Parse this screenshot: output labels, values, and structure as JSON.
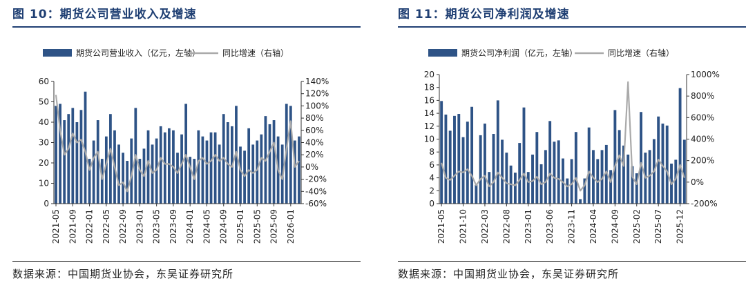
{
  "panels": [
    {
      "title": "图 10：期货公司营业收入及增速",
      "source": "数据来源：中国期货业协会，东吴证券研究所"
    },
    {
      "title": "图 11：期货公司净利润及增速",
      "source": "数据来源：中国期货业协会，东吴证券研究所"
    }
  ],
  "colors": {
    "bar": "#2e5386",
    "line": "#aaaaaa",
    "title": "#1f3f73"
  },
  "chart_data": [
    {
      "type": "bar",
      "title": "",
      "legend": [
        "期货公司营业收入（亿元，左轴）",
        "同比增速（右轴）"
      ],
      "legend_position": "top",
      "grid": false,
      "ylim_left": [
        0,
        60
      ],
      "yticks_left": [
        "0",
        "10",
        "20",
        "30",
        "40",
        "50",
        "60"
      ],
      "ylim_right": [
        -60,
        140
      ],
      "yticks_right": [
        "-60%",
        "-40%",
        "-20%",
        "0%",
        "20%",
        "40%",
        "60%",
        "80%",
        "100%",
        "120%",
        "140%"
      ],
      "xticks": [
        "2021-05",
        "2021-09",
        "2022-01",
        "2022-05",
        "2022-09",
        "2023-01",
        "2023-05",
        "2023-09",
        "2024-01",
        "2024-05",
        "2024-09",
        "2025-01",
        "2025-05",
        "2025-09",
        "2026-01"
      ],
      "n_periods": 59,
      "xtick_every": 4,
      "series": [
        {
          "name": "期货公司营业收入（亿元，左轴）",
          "type": "bar",
          "axis": "left",
          "values": [
            48,
            49,
            41,
            44,
            47,
            40,
            46,
            55,
            22,
            31,
            41,
            22,
            33,
            44,
            36,
            29,
            25,
            21,
            32,
            47,
            22,
            27,
            36,
            29,
            32,
            38,
            35,
            37,
            36,
            25,
            34,
            49,
            23,
            22,
            36,
            33,
            31,
            35,
            35,
            29,
            44,
            40,
            38,
            48,
            28,
            26,
            37,
            29,
            31,
            34,
            43,
            39,
            41,
            33,
            29,
            49,
            48,
            31,
            33
          ]
        },
        {
          "name": "同比增速（右轴）",
          "type": "line",
          "axis": "right",
          "values": [
            118,
            60,
            20,
            30,
            55,
            40,
            45,
            25,
            -5,
            15,
            25,
            -20,
            5,
            30,
            0,
            -30,
            -25,
            -40,
            -15,
            20,
            -5,
            -15,
            10,
            -10,
            -5,
            15,
            5,
            5,
            0,
            -10,
            5,
            20,
            0,
            -20,
            10,
            15,
            5,
            10,
            20,
            10,
            15,
            5,
            0,
            25,
            -5,
            -15,
            -5,
            -10,
            -5,
            15,
            10,
            25,
            40,
            -5,
            -20,
            30,
            75,
            0,
            10
          ]
        }
      ]
    },
    {
      "type": "bar",
      "title": "",
      "legend": [
        "期货公司净利润（亿元，左轴）",
        "同比增速（右轴）"
      ],
      "legend_position": "top",
      "grid": false,
      "ylim_left": [
        0,
        20
      ],
      "yticks_left": [
        "0",
        "2",
        "4",
        "6",
        "8",
        "10",
        "12",
        "14",
        "16",
        "18",
        "20"
      ],
      "ylim_right": [
        -200,
        1000
      ],
      "yticks_right": [
        "-200%",
        "0%",
        "200%",
        "400%",
        "600%",
        "800%",
        "1000%"
      ],
      "xticks": [
        "2021-05",
        "2021-10",
        "2022-03",
        "2022-08",
        "2023-01",
        "2023-06",
        "2023-11",
        "2024-04",
        "2024-09",
        "2025-02",
        "2025-07",
        "2025-12"
      ],
      "n_periods": 57,
      "xtick_every": 5,
      "series": [
        {
          "name": "期货公司净利润（亿元，左轴）",
          "type": "bar",
          "axis": "left",
          "values": [
            15.9,
            13.8,
            11.3,
            13.6,
            13.9,
            10.3,
            12.7,
            15.0,
            2.9,
            10.6,
            12.4,
            4.9,
            10.8,
            16.0,
            9.9,
            7.9,
            5.9,
            4.8,
            9.4,
            14.9,
            4.9,
            7.6,
            11.1,
            6.1,
            8.3,
            12.8,
            9.6,
            9.8,
            7.0,
            3.9,
            6.9,
            11.1,
            0.7,
            3.9,
            11.8,
            8.3,
            6.9,
            8.3,
            9.1,
            5.2,
            14.5,
            11.4,
            9.0,
            7.6,
            5.8,
            4.7,
            14.2,
            7.9,
            8.3,
            10.0,
            13.5,
            12.4,
            12.1,
            6.2,
            6.8,
            17.9,
            9.9
          ]
        },
        {
          "name": "同比增速（右轴）",
          "type": "line",
          "axis": "right",
          "values": [
            180,
            40,
            20,
            60,
            100,
            90,
            120,
            60,
            -30,
            30,
            60,
            -40,
            0,
            90,
            40,
            -10,
            -20,
            -30,
            20,
            80,
            0,
            10,
            50,
            -20,
            0,
            80,
            40,
            30,
            0,
            -40,
            -20,
            40,
            -80,
            -30,
            100,
            40,
            0,
            30,
            100,
            0,
            150,
            250,
            150,
            930,
            50,
            -20,
            180,
            40,
            60,
            100,
            210,
            150,
            100,
            -20,
            30,
            160,
            40
          ]
        }
      ]
    }
  ]
}
